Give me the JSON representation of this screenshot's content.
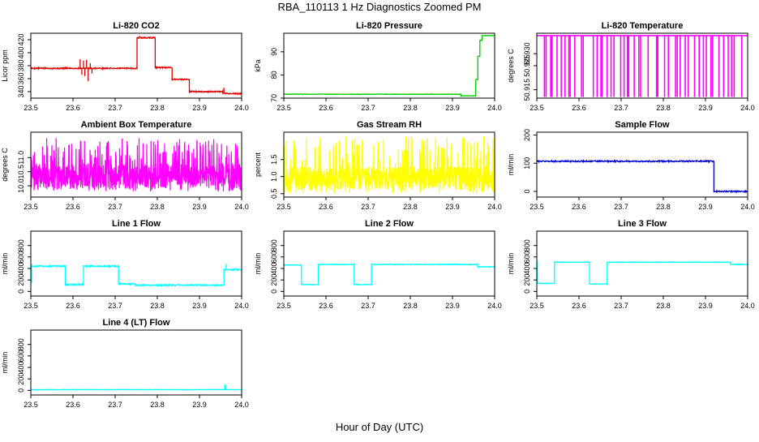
{
  "page": {
    "title": "RBA_110113  1 Hz Diagnostics Zoomed PM",
    "xlabel": "Hour of Day (UTC)"
  },
  "colors": {
    "red": "#dd0000",
    "green": "#00cc00",
    "magenta": "#ff00ff",
    "yellow": "#ffff00",
    "blue": "#0000cc",
    "cyan": "#00ffff",
    "axis": "#000000"
  },
  "chart_data": [
    {
      "type": "line",
      "title": "Li-820 CO2",
      "ylabel": "Licor ppm",
      "color": "red",
      "xlim": [
        23.5,
        24.0
      ],
      "ylim": [
        330,
        430
      ],
      "xticks": [
        23.5,
        23.6,
        23.7,
        23.8,
        23.9,
        24.0
      ],
      "xtick_labels": [
        "23.5",
        "23.6",
        "23.7",
        "23.8",
        "23.9",
        "24.0"
      ],
      "yticks": [
        340,
        360,
        380,
        400,
        420
      ],
      "ytick_labels": [
        "340",
        "360",
        "380",
        "400",
        "420"
      ],
      "noise": 1.0,
      "spikes": [
        {
          "x": 23.617,
          "y": 390
        },
        {
          "x": 23.621,
          "y": 366
        },
        {
          "x": 23.625,
          "y": 388
        },
        {
          "x": 23.628,
          "y": 364
        },
        {
          "x": 23.632,
          "y": 389
        },
        {
          "x": 23.636,
          "y": 356
        },
        {
          "x": 23.641,
          "y": 384
        },
        {
          "x": 23.645,
          "y": 368
        },
        {
          "x": 23.758,
          "y": 426
        },
        {
          "x": 23.79,
          "y": 425
        },
        {
          "x": 23.958,
          "y": 346
        }
      ],
      "segments": [
        {
          "x": [
            23.5,
            23.752
          ],
          "y": 376
        },
        {
          "x": [
            23.752,
            23.795
          ],
          "y": 423
        },
        {
          "x": [
            23.795,
            23.835
          ],
          "y": 377
        },
        {
          "x": [
            23.835,
            23.876
          ],
          "y": 359
        },
        {
          "x": [
            23.876,
            23.955
          ],
          "y": 340
        },
        {
          "x": [
            23.955,
            24.0
          ],
          "y": 337
        }
      ]
    },
    {
      "type": "line",
      "title": "Li-820 Pressure",
      "ylabel": "kPa",
      "color": "green",
      "xlim": [
        23.5,
        24.0
      ],
      "ylim": [
        70,
        98
      ],
      "xticks": [
        23.5,
        23.6,
        23.7,
        23.8,
        23.9,
        24.0
      ],
      "xtick_labels": [
        "23.5",
        "23.6",
        "23.7",
        "23.8",
        "23.9",
        "24.0"
      ],
      "yticks": [
        70,
        80,
        90
      ],
      "ytick_labels": [
        "70",
        "80",
        "90"
      ],
      "noise": 0.1,
      "spikes": [],
      "segments": [
        {
          "x": [
            23.5,
            23.92
          ],
          "y": 71.7
        },
        {
          "x": [
            23.92,
            23.955
          ],
          "y": 71.0
        },
        {
          "x": [
            23.955,
            23.96
          ],
          "y": 78
        },
        {
          "x": [
            23.96,
            23.965
          ],
          "y": 88
        },
        {
          "x": [
            23.965,
            23.97
          ],
          "y": 95
        },
        {
          "x": [
            23.97,
            24.0
          ],
          "y": 97
        }
      ]
    },
    {
      "type": "line",
      "title": "Li-820 Temperature",
      "ylabel": "degrees C",
      "color": "magenta",
      "xlim": [
        23.5,
        24.0
      ],
      "ylim": [
        50.9115,
        50.9385
      ],
      "xticks": [
        23.5,
        23.6,
        23.7,
        23.8,
        23.9,
        24.0
      ],
      "xtick_labels": [
        "23.5",
        "23.6",
        "23.7",
        "23.8",
        "23.9",
        "24.0"
      ],
      "yticks": [
        50.915,
        50.925,
        50.93
      ],
      "ytick_labels": [
        "50.915",
        "50.925",
        "50.930"
      ],
      "baseline": 50.9375,
      "low": 50.912,
      "drops": [
        23.518,
        23.522,
        23.533,
        23.536,
        23.548,
        23.558,
        23.567,
        23.576,
        23.579,
        23.59,
        23.606,
        23.61,
        23.634,
        23.643,
        23.652,
        23.655,
        23.667,
        23.676,
        23.683,
        23.699,
        23.707,
        23.715,
        23.718,
        23.731,
        23.742,
        23.746,
        23.764,
        23.784,
        23.787,
        23.803,
        23.812,
        23.829,
        23.833,
        23.84,
        23.852,
        23.859,
        23.874,
        23.885,
        23.895,
        23.902,
        23.913,
        23.917,
        23.932,
        23.943,
        23.954,
        23.962,
        23.968,
        23.986
      ]
    },
    {
      "type": "line",
      "title": "Ambient Box Temperature",
      "ylabel": "degrees C",
      "color": "magenta",
      "xlim": [
        23.5,
        24.0
      ],
      "ylim": [
        9.6,
        11.9
      ],
      "xticks": [
        23.5,
        23.6,
        23.7,
        23.8,
        23.9,
        24.0
      ],
      "xtick_labels": [
        "23.5",
        "23.6",
        "23.7",
        "23.8",
        "23.9",
        "24.0"
      ],
      "yticks": [
        10.0,
        10.5,
        11.0
      ],
      "ytick_labels": [
        "10.0",
        "10.5",
        "11.0"
      ],
      "noise_band": [
        9.9,
        10.8
      ],
      "spike_range": [
        9.8,
        11.7
      ],
      "seed": 7,
      "n": 900
    },
    {
      "type": "line",
      "title": "Gas Stream RH",
      "ylabel": "percent",
      "color": "yellow",
      "xlim": [
        23.5,
        24.0
      ],
      "ylim": [
        0.4,
        2.3
      ],
      "xticks": [
        23.5,
        23.6,
        23.7,
        23.8,
        23.9,
        24.0
      ],
      "xtick_labels": [
        "23.5",
        "23.6",
        "23.7",
        "23.8",
        "23.9",
        "24.0"
      ],
      "yticks": [
        0.5,
        1.0,
        1.5
      ],
      "ytick_labels": [
        "0.5",
        "1.0",
        "1.5"
      ],
      "noise_band": [
        0.6,
        1.3
      ],
      "spike_range": [
        0.5,
        2.2
      ],
      "seed": 13,
      "n": 900
    },
    {
      "type": "line",
      "title": "Sample Flow",
      "ylabel": "ml/min",
      "color": "blue",
      "xlim": [
        23.5,
        24.0
      ],
      "ylim": [
        -20,
        210
      ],
      "xticks": [
        23.5,
        23.6,
        23.7,
        23.8,
        23.9,
        24.0
      ],
      "xtick_labels": [
        "23.5",
        "23.6",
        "23.7",
        "23.8",
        "23.9",
        "24.0"
      ],
      "yticks": [
        0,
        100,
        200
      ],
      "ytick_labels": [
        "0",
        "100",
        "200"
      ],
      "noise": 2.5,
      "spikes": [],
      "segments": [
        {
          "x": [
            23.5,
            23.92
          ],
          "y": 107
        },
        {
          "x": [
            23.92,
            24.0
          ],
          "y": 0
        }
      ]
    },
    {
      "type": "line",
      "title": "Line 1 Flow",
      "ylabel": "ml/min",
      "color": "cyan",
      "xlim": [
        23.5,
        24.0
      ],
      "ylim": [
        -80,
        1050
      ],
      "xticks": [
        23.5,
        23.6,
        23.7,
        23.8,
        23.9,
        24.0
      ],
      "xtick_labels": [
        "23.5",
        "23.6",
        "23.7",
        "23.8",
        "23.9",
        "24.0"
      ],
      "yticks": [
        0,
        200,
        400,
        600,
        800
      ],
      "ytick_labels": [
        "0",
        "200",
        "400",
        "600",
        "800"
      ],
      "noise": 12,
      "spikes": [
        {
          "x": 23.503,
          "y": 480
        },
        {
          "x": 23.963,
          "y": 470
        }
      ],
      "segments": [
        {
          "x": [
            23.5,
            23.502
          ],
          "y": 150
        },
        {
          "x": [
            23.502,
            23.582
          ],
          "y": 440
        },
        {
          "x": [
            23.582,
            23.625
          ],
          "y": 120
        },
        {
          "x": [
            23.625,
            23.708
          ],
          "y": 440
        },
        {
          "x": [
            23.708,
            23.748
          ],
          "y": 130
        },
        {
          "x": [
            23.748,
            23.958
          ],
          "y": 110
        },
        {
          "x": [
            23.958,
            24.0
          ],
          "y": 380
        }
      ]
    },
    {
      "type": "line",
      "title": "Line 2 Flow",
      "ylabel": "ml/min",
      "color": "cyan",
      "xlim": [
        23.5,
        24.0
      ],
      "ylim": [
        -80,
        1050
      ],
      "xticks": [
        23.5,
        23.6,
        23.7,
        23.8,
        23.9,
        24.0
      ],
      "xtick_labels": [
        "23.5",
        "23.6",
        "23.7",
        "23.8",
        "23.9",
        "24.0"
      ],
      "yticks": [
        0,
        200,
        400,
        600,
        800
      ],
      "ytick_labels": [
        "0",
        "200",
        "400",
        "600",
        "800"
      ],
      "noise": 6,
      "spikes": [],
      "segments": [
        {
          "x": [
            23.5,
            23.542
          ],
          "y": 460
        },
        {
          "x": [
            23.542,
            23.582
          ],
          "y": 120
        },
        {
          "x": [
            23.582,
            23.667
          ],
          "y": 470
        },
        {
          "x": [
            23.667,
            23.708
          ],
          "y": 120
        },
        {
          "x": [
            23.708,
            23.96
          ],
          "y": 470
        },
        {
          "x": [
            23.96,
            24.0
          ],
          "y": 430
        }
      ]
    },
    {
      "type": "line",
      "title": "Line 3 Flow",
      "ylabel": "ml/min",
      "color": "cyan",
      "xlim": [
        23.5,
        24.0
      ],
      "ylim": [
        -80,
        1050
      ],
      "xticks": [
        23.5,
        23.6,
        23.7,
        23.8,
        23.9,
        24.0
      ],
      "xtick_labels": [
        "23.5",
        "23.6",
        "23.7",
        "23.8",
        "23.9",
        "24.0"
      ],
      "yticks": [
        0,
        200,
        400,
        600,
        800
      ],
      "ytick_labels": [
        "0",
        "200",
        "400",
        "600",
        "800"
      ],
      "noise": 5,
      "spikes": [
        {
          "x": 23.501,
          "y": 530
        }
      ],
      "segments": [
        {
          "x": [
            23.5,
            23.542
          ],
          "y": 140
        },
        {
          "x": [
            23.542,
            23.625
          ],
          "y": 510
        },
        {
          "x": [
            23.625,
            23.667
          ],
          "y": 130
        },
        {
          "x": [
            23.667,
            23.96
          ],
          "y": 510
        },
        {
          "x": [
            23.96,
            24.0
          ],
          "y": 470
        }
      ]
    },
    {
      "type": "line",
      "title": "Line 4 (LT) Flow",
      "ylabel": "ml/min",
      "color": "cyan",
      "xlim": [
        23.5,
        24.0
      ],
      "ylim": [
        -80,
        1050
      ],
      "xticks": [
        23.5,
        23.6,
        23.7,
        23.8,
        23.9,
        24.0
      ],
      "xtick_labels": [
        "23.5",
        "23.6",
        "23.7",
        "23.8",
        "23.9",
        "24.0"
      ],
      "yticks": [
        0,
        200,
        400,
        600,
        800
      ],
      "ytick_labels": [
        "0",
        "200",
        "400",
        "600",
        "800"
      ],
      "noise": 4,
      "spikes": [
        {
          "x": 23.96,
          "y": 110
        },
        {
          "x": 23.962,
          "y": 90
        }
      ],
      "segments": [
        {
          "x": [
            23.5,
            24.0
          ],
          "y": 12
        }
      ]
    }
  ]
}
